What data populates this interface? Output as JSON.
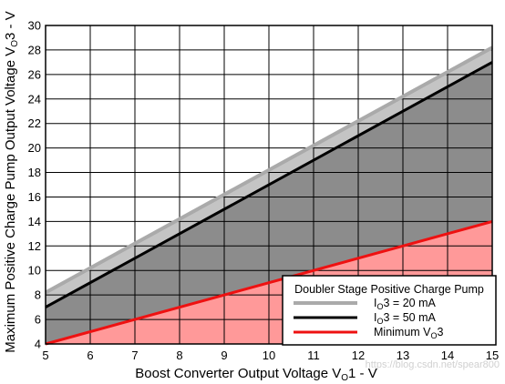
{
  "chart_data": {
    "type": "area",
    "xlabel": {
      "main": "Boost Converter Output Voltage V",
      "sub": "O",
      "post": "1 - V"
    },
    "ylabel": {
      "main": "Maximum Positive Charge Pump Output Voltage V",
      "sub": "O",
      "post": "3 - V"
    },
    "xlim": [
      5,
      15
    ],
    "ylim": [
      4,
      30
    ],
    "xticks": [
      5,
      6,
      7,
      8,
      9,
      10,
      11,
      12,
      13,
      14,
      15
    ],
    "yticks": [
      4,
      6,
      8,
      10,
      12,
      14,
      16,
      18,
      20,
      22,
      24,
      26,
      28,
      30
    ],
    "grid": true,
    "series": [
      {
        "name": {
          "pre": "I",
          "sub": "O",
          "post": "3 = 20 mA"
        },
        "color": "#aaaaaa",
        "x": [
          5,
          15
        ],
        "y": [
          8.2,
          28.2
        ]
      },
      {
        "name": {
          "pre": "I",
          "sub": "O",
          "post": "3 = 50 mA"
        },
        "color": "#000000",
        "x": [
          5,
          15
        ],
        "y": [
          7.0,
          27.0
        ]
      },
      {
        "name": {
          "pre": "Minimum V",
          "sub": "O",
          "post": "3"
        },
        "color": "#ee1111",
        "x": [
          5,
          15
        ],
        "y": [
          4.0,
          14.0
        ]
      }
    ],
    "fills": {
      "upper_band": "#c4c4c4",
      "middle_region": "#8c8c8c",
      "lower_region": "#ff9999"
    },
    "legend": {
      "title": "Doubler Stage Positive Charge Pump",
      "position": "bottom-right"
    }
  },
  "watermark": "https://blog.csdn.net/spear800"
}
